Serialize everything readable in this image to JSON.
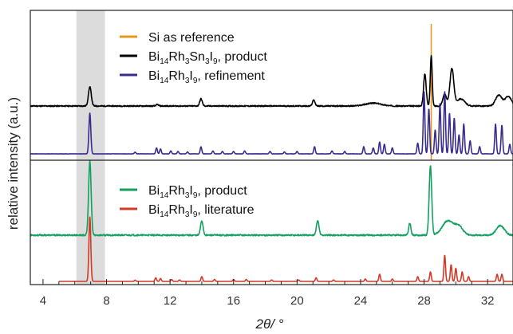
{
  "chart_data": {
    "type": "line",
    "xlabel": "2θ/ °",
    "ylabel": "relative intensity (a.u.)",
    "xlim": [
      3.2,
      33.6
    ],
    "xticks": [
      4,
      8,
      12,
      16,
      20,
      24,
      28,
      32
    ],
    "highlight_band": [
      6.1,
      7.9
    ],
    "reference_line_x": 28.45,
    "top_panel": {
      "legend": [
        {
          "key": "si",
          "segments": [
            {
              "t": "Si as reference",
              "sub": false
            }
          ]
        },
        {
          "key": "p1",
          "segments": [
            {
              "t": "Bi",
              "sub": false
            },
            {
              "t": "14",
              "sub": true
            },
            {
              "t": "Rh",
              "sub": false
            },
            {
              "t": "3",
              "sub": true
            },
            {
              "t": "Sn",
              "sub": false
            },
            {
              "t": "3",
              "sub": true
            },
            {
              "t": "I",
              "sub": false
            },
            {
              "t": "9",
              "sub": true
            },
            {
              "t": ", product",
              "sub": false
            }
          ]
        },
        {
          "key": "p2",
          "segments": [
            {
              "t": "Bi",
              "sub": false
            },
            {
              "t": "14",
              "sub": true
            },
            {
              "t": "Rh",
              "sub": false
            },
            {
              "t": "3",
              "sub": true
            },
            {
              "t": "I",
              "sub": false
            },
            {
              "t": "9",
              "sub": true
            },
            {
              "t": ", refinement",
              "sub": false
            }
          ]
        }
      ],
      "series": [
        {
          "key": "p1",
          "color": "#000000",
          "baseline": 0.3,
          "noise": 0.05,
          "xstart": 3.2,
          "peaks": [
            [
              6.95,
              0.8,
              0.09
            ],
            [
              11.2,
              0.06,
              0.08
            ],
            [
              13.95,
              0.3,
              0.08
            ],
            [
              21.05,
              0.25,
              0.08
            ],
            [
              24.8,
              0.12,
              0.5
            ],
            [
              28.05,
              1.35,
              0.08
            ],
            [
              28.45,
              2.1,
              0.06
            ],
            [
              29.3,
              0.5,
              0.12
            ],
            [
              29.75,
              1.55,
              0.12
            ],
            [
              30.3,
              0.3,
              0.25
            ],
            [
              32.7,
              0.45,
              0.2
            ],
            [
              33.3,
              0.4,
              0.2
            ]
          ]
        },
        {
          "key": "p2",
          "color": "#3a2c8f",
          "baseline": 0.0,
          "noise": 0.01,
          "xstart": 3.2,
          "peaks": [
            [
              6.95,
              1.7,
              0.06
            ],
            [
              9.8,
              0.07,
              0.05
            ],
            [
              11.15,
              0.25,
              0.05
            ],
            [
              11.4,
              0.2,
              0.05
            ],
            [
              12.05,
              0.12,
              0.05
            ],
            [
              12.5,
              0.1,
              0.05
            ],
            [
              13.1,
              0.08,
              0.05
            ],
            [
              13.95,
              0.3,
              0.05
            ],
            [
              14.7,
              0.12,
              0.05
            ],
            [
              15.3,
              0.1,
              0.05
            ],
            [
              16.0,
              0.1,
              0.05
            ],
            [
              16.7,
              0.12,
              0.05
            ],
            [
              18.3,
              0.1,
              0.05
            ],
            [
              19.2,
              0.08,
              0.05
            ],
            [
              20.0,
              0.1,
              0.05
            ],
            [
              21.1,
              0.3,
              0.05
            ],
            [
              22.2,
              0.12,
              0.05
            ],
            [
              23.0,
              0.1,
              0.05
            ],
            [
              24.2,
              0.3,
              0.05
            ],
            [
              24.8,
              0.25,
              0.05
            ],
            [
              25.2,
              0.5,
              0.05
            ],
            [
              25.5,
              0.4,
              0.05
            ],
            [
              26.0,
              0.25,
              0.05
            ],
            [
              27.6,
              0.45,
              0.05
            ],
            [
              28.0,
              2.6,
              0.05
            ],
            [
              28.3,
              1.9,
              0.05
            ],
            [
              28.7,
              1.0,
              0.05
            ],
            [
              29.0,
              2.1,
              0.05
            ],
            [
              29.3,
              2.6,
              0.05
            ],
            [
              29.6,
              1.7,
              0.05
            ],
            [
              29.9,
              1.5,
              0.05
            ],
            [
              30.2,
              0.8,
              0.05
            ],
            [
              30.5,
              1.25,
              0.05
            ],
            [
              30.9,
              0.55,
              0.05
            ],
            [
              31.5,
              0.3,
              0.05
            ],
            [
              32.5,
              1.25,
              0.05
            ],
            [
              32.9,
              1.2,
              0.05
            ],
            [
              33.4,
              0.4,
              0.05
            ]
          ]
        }
      ]
    },
    "bottom_panel": {
      "legend": [
        {
          "key": "b1",
          "segments": [
            {
              "t": "Bi",
              "sub": false
            },
            {
              "t": "14",
              "sub": true
            },
            {
              "t": "Rh",
              "sub": false
            },
            {
              "t": "3",
              "sub": true
            },
            {
              "t": "I",
              "sub": false
            },
            {
              "t": "9",
              "sub": true
            },
            {
              "t": ", product",
              "sub": false
            }
          ]
        },
        {
          "key": "b2",
          "segments": [
            {
              "t": "Bi",
              "sub": false
            },
            {
              "t": "14",
              "sub": true
            },
            {
              "t": "Rh",
              "sub": false
            },
            {
              "t": "3",
              "sub": true
            },
            {
              "t": "I",
              "sub": false
            },
            {
              "t": "9",
              "sub": true
            },
            {
              "t": ", literature",
              "sub": false
            }
          ]
        }
      ],
      "series": [
        {
          "key": "b1",
          "color": "#15a060",
          "baseline": 0.9,
          "noise": 0.06,
          "xstart": 3.2,
          "peaks": [
            [
              6.95,
              3.1,
              0.08
            ],
            [
              14.0,
              0.6,
              0.08
            ],
            [
              21.3,
              0.6,
              0.08
            ],
            [
              27.1,
              0.5,
              0.07
            ],
            [
              28.4,
              2.9,
              0.08
            ],
            [
              29.5,
              0.6,
              0.35
            ],
            [
              30.2,
              0.35,
              0.25
            ],
            [
              32.8,
              0.4,
              0.25
            ]
          ]
        },
        {
          "key": "b2",
          "color": "#d23a27",
          "baseline": 0.0,
          "noise": 0.0,
          "xstart": 5.0,
          "peaks": [
            [
              6.95,
              2.7,
              0.06
            ],
            [
              9.8,
              0.05,
              0.05
            ],
            [
              11.1,
              0.15,
              0.05
            ],
            [
              11.4,
              0.12,
              0.05
            ],
            [
              12.1,
              0.08,
              0.05
            ],
            [
              12.6,
              0.06,
              0.05
            ],
            [
              14.0,
              0.2,
              0.05
            ],
            [
              14.8,
              0.08,
              0.05
            ],
            [
              16.0,
              0.08,
              0.05
            ],
            [
              16.8,
              0.08,
              0.05
            ],
            [
              18.4,
              0.06,
              0.05
            ],
            [
              20.1,
              0.06,
              0.05
            ],
            [
              21.2,
              0.15,
              0.05
            ],
            [
              22.3,
              0.06,
              0.05
            ],
            [
              24.3,
              0.1,
              0.05
            ],
            [
              25.2,
              0.3,
              0.05
            ],
            [
              26.0,
              0.1,
              0.05
            ],
            [
              27.6,
              0.2,
              0.05
            ],
            [
              28.4,
              0.4,
              0.05
            ],
            [
              29.3,
              1.1,
              0.05
            ],
            [
              29.7,
              0.7,
              0.05
            ],
            [
              30.0,
              0.55,
              0.05
            ],
            [
              30.4,
              0.4,
              0.05
            ],
            [
              30.8,
              0.2,
              0.05
            ],
            [
              32.6,
              0.3,
              0.05
            ],
            [
              32.9,
              0.3,
              0.05
            ]
          ]
        }
      ]
    }
  },
  "colors": {
    "si": "#e59a1c",
    "p1": "#000000",
    "p2": "#3a2c8f",
    "b1": "#15a060",
    "b2": "#d23a27",
    "band": "#dcdcdc"
  }
}
